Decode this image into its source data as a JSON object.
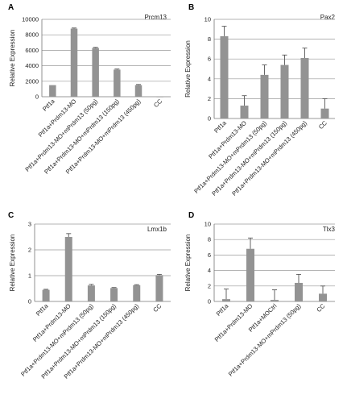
{
  "chart_data": [
    {
      "type": "bar",
      "panel": "A",
      "title": "Prcm13",
      "ylabel": "Relative Expression",
      "ylim": [
        0,
        10000
      ],
      "yticks": [
        0,
        2000,
        4000,
        6000,
        8000,
        10000
      ],
      "grid": true,
      "categories": [
        "Ptf1a",
        "Ptf1a+Prdm13-MO",
        "Ptf1a+Prdm13-MO+mPrdm13 (50pg)",
        "Ptf1a+Prdm13-MO+mPrdm13 (150pg)",
        "Ptf1a+Prdm13-MO+mPrdm13 (450pg)",
        "CC"
      ],
      "values": [
        1500,
        8800,
        6300,
        3500,
        1500,
        0
      ],
      "errors": [
        0,
        80,
        80,
        80,
        80,
        0
      ]
    },
    {
      "type": "bar",
      "panel": "B",
      "title": "Pax2",
      "ylabel": "Relative Expression",
      "ylim": [
        0,
        10
      ],
      "yticks": [
        0,
        2,
        4,
        6,
        8,
        10
      ],
      "grid": true,
      "categories": [
        "Ptf1a",
        "Ptf1a+Prdm13-MO",
        "Ptf1a+Prdm13-MO+mPrdm13 (50pg)",
        "Ptf1a+Prdm13-MO+mPrdm13 (150pg)",
        "Ptf1a+Prdm13-MO+mPrdm13 (450pg)",
        "CC"
      ],
      "values": [
        8.3,
        1.3,
        4.4,
        5.4,
        6.1,
        1.0
      ],
      "errors": [
        1.0,
        1.0,
        1.0,
        1.0,
        1.0,
        1.0
      ]
    },
    {
      "type": "bar",
      "panel": "C",
      "title": "Lmx1b",
      "ylabel": "Relative Expression",
      "ylim": [
        0,
        3
      ],
      "yticks": [
        0,
        1,
        2,
        3
      ],
      "grid": true,
      "categories": [
        "Ptf1a",
        "Ptf1a+Prdm13-MO",
        "Ptf1a+Prdm13-MO+mPrdm13 (50pg)",
        "Ptf1a+Prdm13-MO+mPrdm13 (150pg)",
        "Ptf1a+Prdm13-MO+mPrdm13 (450pg)",
        "CC"
      ],
      "values": [
        0.45,
        2.5,
        0.62,
        0.52,
        0.63,
        1.02
      ],
      "errors": [
        0.02,
        0.13,
        0.04,
        0.02,
        0.02,
        0.03
      ]
    },
    {
      "type": "bar",
      "panel": "D",
      "title": "Tlx3",
      "ylabel": "Relative Expression",
      "ylim": [
        0,
        10
      ],
      "yticks": [
        0,
        2,
        4,
        6,
        8,
        10
      ],
      "grid": true,
      "categories": [
        "Ptf1a",
        "Ptf1a+Prdm13-MO",
        "Ptf1a+MOCtrl",
        "Ptf1a+Prdm13-MO+mPrdm13 (50pg)",
        "CC"
      ],
      "values": [
        0.3,
        6.8,
        0.2,
        2.4,
        1.0
      ],
      "errors": [
        1.3,
        1.4,
        1.3,
        1.1,
        1.0
      ]
    }
  ]
}
